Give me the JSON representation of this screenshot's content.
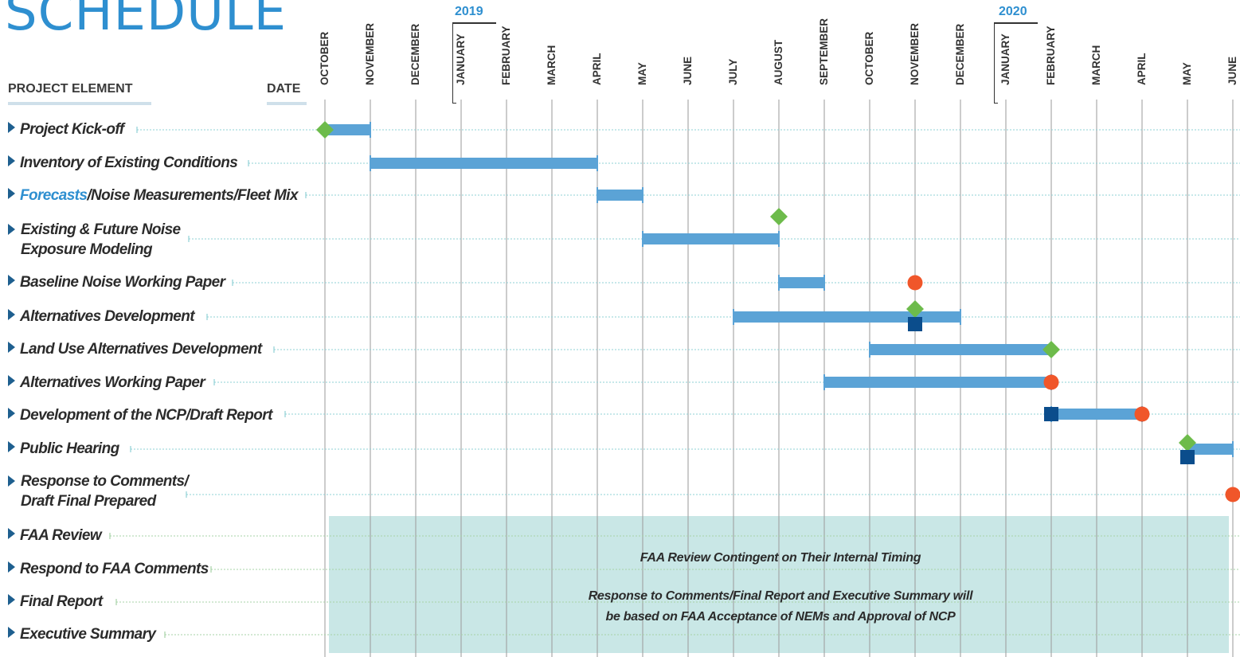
{
  "title": "SCHEDULE",
  "header": {
    "project_element": "PROJECT ELEMENT",
    "date": "DATE"
  },
  "years": [
    "2019",
    "2020"
  ],
  "months": [
    "OCTOBER",
    "NOVEMBER",
    "DECEMBER",
    "JANUARY",
    "FEBRUARY",
    "MARCH",
    "APRIL",
    "MAY",
    "JUNE",
    "JULY",
    "AUGUST",
    "SEPTEMBER",
    "OCTOBER",
    "NOVEMBER",
    "DECEMBER",
    "JANUARY",
    "FEBRUARY",
    "MARCH",
    "APRIL",
    "MAY",
    "JUNE"
  ],
  "tasks": [
    {
      "label": "Project Kick-off"
    },
    {
      "label": "Inventory of Existing Conditions"
    },
    {
      "label_hl": "Forecasts",
      "label": "/Noise Measurements/Fleet Mix"
    },
    {
      "label": "Existing & Future Noise",
      "label2": "Exposure Modeling"
    },
    {
      "label": "Baseline Noise Working Paper"
    },
    {
      "label": "Alternatives Development"
    },
    {
      "label": "Land Use Alternatives Development"
    },
    {
      "label": "Alternatives Working Paper"
    },
    {
      "label": "Development of the NCP/Draft Report"
    },
    {
      "label": "Public Hearing"
    },
    {
      "label": "Response to Comments/",
      "label2": "Draft Final Prepared"
    },
    {
      "label": "FAA Review"
    },
    {
      "label": "Respond to FAA Comments"
    },
    {
      "label": "Final Report"
    },
    {
      "label": "Executive Summary"
    }
  ],
  "shaded_note_1": "FAA Review Contingent on Their Internal Timing",
  "shaded_note_2a": "Response to Comments/Final Report and Executive Summary will",
  "shaded_note_2b": "be based on FAA Acceptance of NEMs and Approval of NCP",
  "colors": {
    "bar": "#5ba3d6",
    "diamond": "#6dbb4b",
    "circle": "#f0562a",
    "square": "#0b4d8c",
    "shade": "#c9e7e6",
    "accent": "#2e8fd0"
  },
  "chart_data": {
    "type": "gantt",
    "title": "SCHEDULE",
    "time_axis": [
      "Oct 2018",
      "Nov",
      "Dec",
      "Jan 2019",
      "Feb",
      "Mar",
      "Apr",
      "May",
      "Jun",
      "Jul",
      "Aug",
      "Sep",
      "Oct",
      "Nov",
      "Dec",
      "Jan 2020",
      "Feb",
      "Mar",
      "Apr",
      "May",
      "Jun"
    ],
    "bars": [
      {
        "task": "Project Kick-off",
        "start": 0,
        "end": 1
      },
      {
        "task": "Inventory of Existing Conditions",
        "start": 1,
        "end": 6
      },
      {
        "task": "Forecasts/Noise Measurements/Fleet Mix",
        "start": 6,
        "end": 7
      },
      {
        "task": "Existing & Future Noise Exposure Modeling",
        "start": 7,
        "end": 10
      },
      {
        "task": "Baseline Noise Working Paper",
        "start": 10,
        "end": 11
      },
      {
        "task": "Alternatives Development",
        "start": 9,
        "end": 14
      },
      {
        "task": "Land Use Alternatives Development",
        "start": 12,
        "end": 16
      },
      {
        "task": "Alternatives Working Paper",
        "start": 11,
        "end": 16
      },
      {
        "task": "Development of the NCP/Draft Report",
        "start": 16,
        "end": 18
      },
      {
        "task": "Response to Comments/Draft Final Prepared",
        "start": 19,
        "end": 20
      }
    ],
    "milestones": [
      {
        "task": "Project Kick-off",
        "at": 0,
        "shape": "diamond"
      },
      {
        "task": "Existing & Future Noise Exposure Modeling",
        "at": 10,
        "shape": "diamond"
      },
      {
        "task": "Baseline Noise Working Paper",
        "at": 13,
        "shape": "circle"
      },
      {
        "task": "Alternatives Development",
        "at": 13,
        "shape": "diamond"
      },
      {
        "task": "Alternatives Development",
        "at": 13,
        "shape": "square"
      },
      {
        "task": "Land Use Alternatives Development",
        "at": 16,
        "shape": "diamond"
      },
      {
        "task": "Alternatives Working Paper",
        "at": 16,
        "shape": "circle"
      },
      {
        "task": "Development of the NCP/Draft Report",
        "at": 16,
        "shape": "square"
      },
      {
        "task": "Development of the NCP/Draft Report",
        "at": 18,
        "shape": "circle"
      },
      {
        "task": "Public Hearing",
        "at": 19,
        "shape": "diamond"
      },
      {
        "task": "Public Hearing",
        "at": 19,
        "shape": "square"
      },
      {
        "task": "Response to Comments/Draft Final Prepared",
        "at": 20,
        "shape": "circle"
      }
    ],
    "shaded_region": {
      "start": 0,
      "end": 20,
      "rows": [
        "FAA Review",
        "Respond to FAA Comments",
        "Final Report",
        "Executive Summary"
      ]
    }
  }
}
